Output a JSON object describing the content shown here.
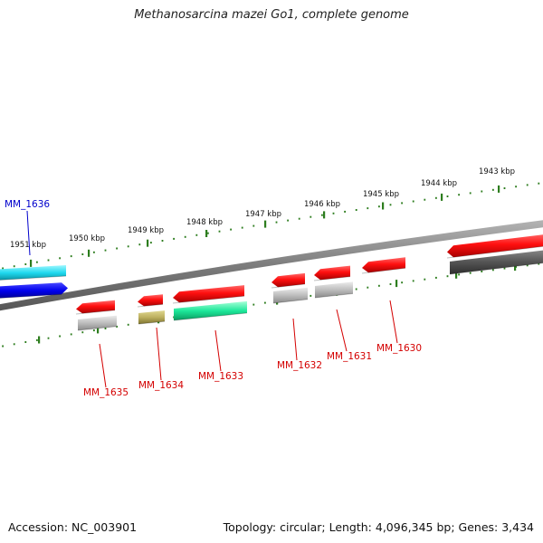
{
  "title": "Methanosarcina mazei Go1, complete genome",
  "footer": {
    "accession": "Accession: NC_003901",
    "summary": "Topology: circular; Length: 4,096,345 bp; Genes: 3,434"
  },
  "colors": {
    "label_red": "#d40000",
    "label_blue": "#0000cc",
    "tick_green": "#2d7d1e",
    "backbone": "#888888"
  },
  "ticks": [
    {
      "label": "1951 kbp"
    },
    {
      "label": "1950 kbp"
    },
    {
      "label": "1949 kbp"
    },
    {
      "label": "1948 kbp"
    },
    {
      "label": "1947 kbp"
    },
    {
      "label": "1946 kbp"
    },
    {
      "label": "1945 kbp"
    },
    {
      "label": "1944 kbp"
    },
    {
      "label": "1943 kbp"
    }
  ],
  "genes": [
    {
      "name": "MM_1636",
      "color": "blue"
    },
    {
      "name": "MM_1635",
      "color": "red"
    },
    {
      "name": "MM_1634",
      "color": "red"
    },
    {
      "name": "MM_1633",
      "color": "red"
    },
    {
      "name": "MM_1632",
      "color": "red"
    },
    {
      "name": "MM_1631",
      "color": "red"
    },
    {
      "name": "MM_1630",
      "color": "red"
    }
  ]
}
